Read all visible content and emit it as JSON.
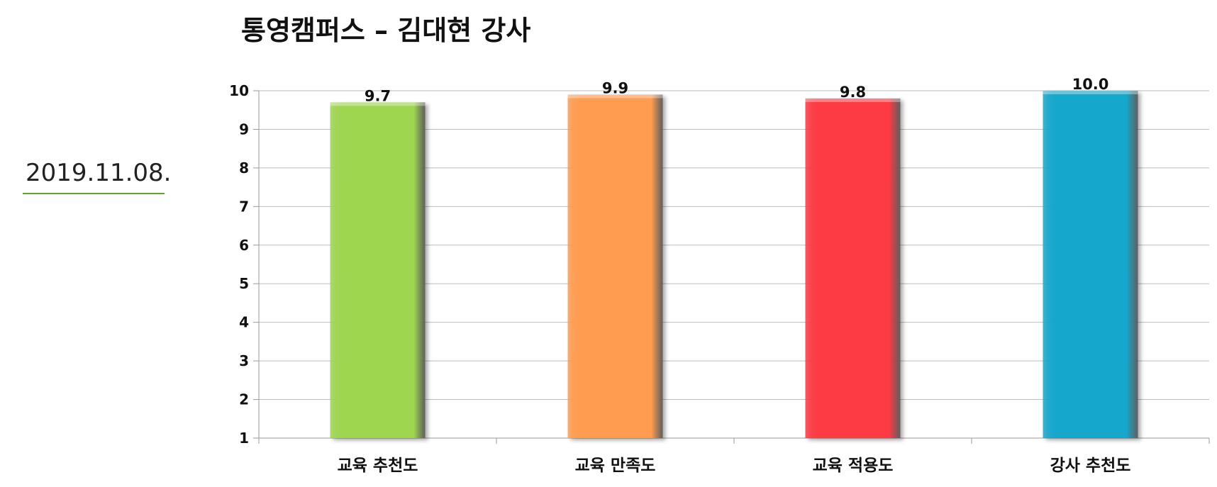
{
  "title": "통영캠퍼스 – 김대현 강사",
  "date": "2019.11.08.",
  "chart_data": {
    "type": "bar",
    "title": "통영캠퍼스 – 김대현 강사",
    "xlabel": "",
    "ylabel": "",
    "categories": [
      "교육 추천도",
      "교육 만족도",
      "교육 적용도",
      "강사 추천도"
    ],
    "values": [
      9.7,
      9.9,
      9.8,
      10.0
    ],
    "value_labels": [
      "9.7",
      "9.9",
      "9.8",
      "10.0"
    ],
    "bar_colors": [
      "#9ed650",
      "#ff9c50",
      "#fd3a45",
      "#18a7cc"
    ],
    "ylim": [
      1,
      10
    ],
    "yticks": [
      1,
      2,
      3,
      4,
      5,
      6,
      7,
      8,
      9,
      10
    ],
    "grid": true,
    "legend": false
  }
}
